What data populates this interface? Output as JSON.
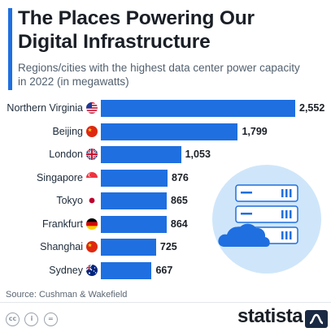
{
  "header": {
    "title_line1": "The Places Powering Our",
    "title_line2": "Digital Infrastructure",
    "subtitle_line1": "Regions/cities with the highest data center power capacity",
    "subtitle_line2": "in 2022 (in megawatts)"
  },
  "chart_data": {
    "type": "bar",
    "orientation": "horizontal",
    "title": "The Places Powering Our Digital Infrastructure",
    "subtitle": "Regions/cities with the highest data center power capacity in 2022 (in megawatts)",
    "categories": [
      "Northern Virginia",
      "Beijing",
      "London",
      "Singapore",
      "Tokyo",
      "Frankfurt",
      "Shanghai",
      "Sydney"
    ],
    "values": [
      2552,
      1799,
      1053,
      876,
      865,
      864,
      725,
      667
    ],
    "value_labels": [
      "2,552",
      "1,799",
      "1,053",
      "876",
      "865",
      "864",
      "725",
      "667"
    ],
    "flags": [
      "us-flag-icon",
      "china-flag-icon",
      "uk-flag-icon",
      "singapore-flag-icon",
      "japan-flag-icon",
      "germany-flag-icon",
      "china-flag-icon",
      "australia-flag-icon"
    ],
    "xlim": [
      0,
      2552
    ],
    "grid": false,
    "legend": "none",
    "bar_color": "#1f6fe0"
  },
  "footer": {
    "source": "Source: Cushman & Wakefield",
    "brand": "statista",
    "cc_icons": [
      "cc",
      "i",
      "="
    ]
  },
  "colors": {
    "accent": "#1f6fe0",
    "illustration_circle": "#cfe6fa",
    "cloud": "#1f6fe0"
  }
}
